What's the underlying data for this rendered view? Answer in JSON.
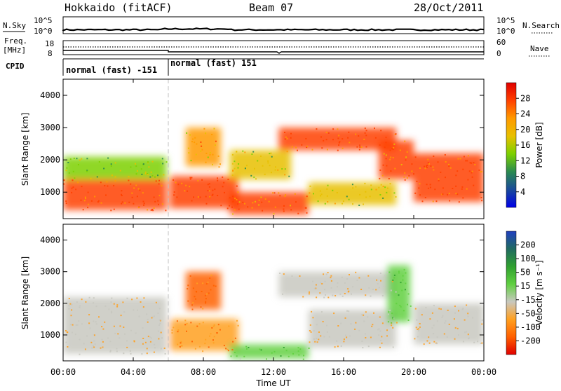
{
  "header": {
    "station": "Hokkaido (fitACF)",
    "beam": "Beam 07",
    "date": "28/Oct/2011"
  },
  "top_panels": {
    "nsky_label": "N.Sky",
    "nsky_ticks": [
      "10^5",
      "10^0"
    ],
    "nsearch_label": "N.Search",
    "nsearch_ticks": [
      "10^5",
      "10^0"
    ],
    "freq_label_line1": "Freq.",
    "freq_label_line2": "[MHz]",
    "freq_ticks": [
      "18",
      "8"
    ],
    "nave_label": "Nave",
    "nave_ticks": [
      "60",
      "0"
    ],
    "cpid_label": "CPID",
    "cpid_segments": [
      {
        "label": "normal (fast) -151",
        "start_hour": 0,
        "end_hour": 6
      },
      {
        "label": "normal (fast) 151",
        "start_hour": 6,
        "end_hour": 24
      }
    ]
  },
  "x_axis": {
    "title": "Time UT",
    "ticks": [
      "00:00",
      "04:00",
      "08:00",
      "12:00",
      "16:00",
      "20:00",
      "00:00"
    ]
  },
  "chart_data": [
    {
      "type": "heatmap",
      "panel": "power",
      "xlabel": "Time UT",
      "ylabel": "Slant Range [km]",
      "xlim": [
        0,
        24
      ],
      "ylim": [
        180,
        4500
      ],
      "yticks": [
        1000,
        2000,
        3000,
        4000
      ],
      "colorbar": {
        "label": "Power [dB]",
        "ticks": [
          28,
          24,
          20,
          16,
          12,
          8,
          4
        ],
        "colors": [
          "#e00000",
          "#ff4000",
          "#ff9a00",
          "#e8c000",
          "#7cd000",
          "#2a8a50",
          "#1a4a9a",
          "#0000e8"
        ]
      },
      "echo_regions": [
        {
          "x": [
            0,
            5.9
          ],
          "y": [
            450,
            1400
          ],
          "value": 28
        },
        {
          "x": [
            0,
            5.9
          ],
          "y": [
            1400,
            2100
          ],
          "value": 16
        },
        {
          "x": [
            6.1,
            10
          ],
          "y": [
            500,
            1500
          ],
          "value": 28
        },
        {
          "x": [
            7,
            9
          ],
          "y": [
            1800,
            3000
          ],
          "value": 22
        },
        {
          "x": [
            9.5,
            14
          ],
          "y": [
            300,
            1000
          ],
          "value": 26
        },
        {
          "x": [
            9.5,
            13
          ],
          "y": [
            1400,
            2300
          ],
          "value": 18
        },
        {
          "x": [
            12.3,
            19
          ],
          "y": [
            2300,
            3000
          ],
          "value": 28
        },
        {
          "x": [
            14,
            19
          ],
          "y": [
            600,
            1300
          ],
          "value": 18
        },
        {
          "x": [
            18,
            20
          ],
          "y": [
            1400,
            2600
          ],
          "value": 26
        },
        {
          "x": [
            20,
            24
          ],
          "y": [
            700,
            2200
          ],
          "value": 28
        }
      ]
    },
    {
      "type": "heatmap",
      "panel": "velocity",
      "xlabel": "Time UT",
      "ylabel": "Slant Range [km]",
      "xlim": [
        0,
        24
      ],
      "ylim": [
        180,
        4500
      ],
      "yticks": [
        1000,
        2000,
        3000,
        4000
      ],
      "colorbar": {
        "label": "Velocity [m s⁻¹]",
        "ticks": [
          200,
          100,
          50,
          15,
          -15,
          -50,
          -100,
          -200
        ],
        "colors": [
          "#2040c0",
          "#206a60",
          "#30a030",
          "#60d040",
          "#c8c8c0",
          "#ffa020",
          "#ff6000",
          "#e00000"
        ]
      },
      "echo_regions": [
        {
          "x": [
            0,
            5.9
          ],
          "y": [
            400,
            2200
          ],
          "value": 0
        },
        {
          "x": [
            6.1,
            10
          ],
          "y": [
            500,
            1500
          ],
          "value": -30
        },
        {
          "x": [
            7,
            9
          ],
          "y": [
            1800,
            3000
          ],
          "value": -40
        },
        {
          "x": [
            9.5,
            14
          ],
          "y": [
            250,
            700
          ],
          "value": 60
        },
        {
          "x": [
            12.3,
            19
          ],
          "y": [
            2200,
            3000
          ],
          "value": 0
        },
        {
          "x": [
            14,
            19
          ],
          "y": [
            600,
            1800
          ],
          "value": 0
        },
        {
          "x": [
            18.5,
            19.8
          ],
          "y": [
            1400,
            3200
          ],
          "value": 60
        },
        {
          "x": [
            20,
            24
          ],
          "y": [
            700,
            2000
          ],
          "value": 0
        }
      ]
    }
  ],
  "colors": {
    "frame": "#000000",
    "divider": "#c0c0c0"
  }
}
